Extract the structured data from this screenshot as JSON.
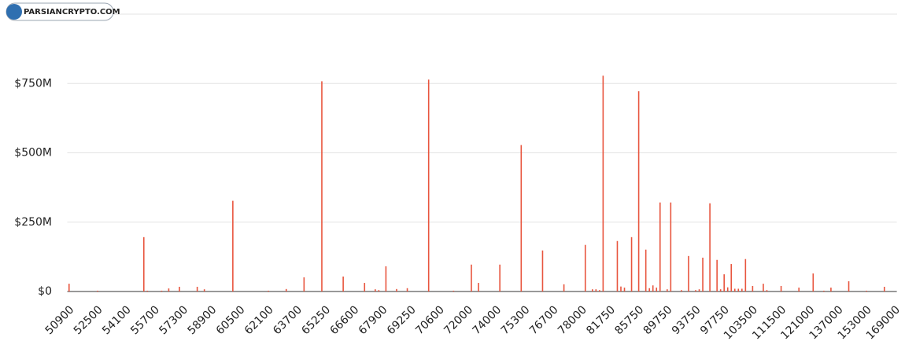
{
  "chart_data": {
    "type": "bar",
    "watermark": "PARSIANCRYPTO.COM",
    "color": "#e8553e",
    "categories": [
      "50900",
      null,
      null,
      null,
      null,
      null,
      null,
      null,
      "52500",
      null,
      null,
      null,
      null,
      null,
      null,
      null,
      "54100",
      null,
      null,
      null,
      null,
      null,
      null,
      null,
      "55700",
      null,
      null,
      null,
      null,
      null,
      null,
      null,
      "57300",
      null,
      null,
      null,
      null,
      null,
      null,
      null,
      "58900",
      null,
      null,
      null,
      null,
      null,
      null,
      null,
      "60500",
      null,
      null,
      null,
      null,
      null,
      null,
      null,
      "62100",
      null,
      null,
      null,
      null,
      null,
      null,
      null,
      "63700",
      null,
      null,
      null,
      null,
      null,
      null,
      null,
      "65250",
      null,
      null,
      null,
      null,
      null,
      null,
      null,
      "66600",
      null,
      null,
      null,
      null,
      null,
      null,
      null,
      "67900",
      null,
      null,
      null,
      null,
      null,
      null,
      null,
      "69250",
      null,
      null,
      null,
      null,
      null,
      null,
      null,
      "70600",
      null,
      null,
      null,
      null,
      null,
      null,
      null,
      "72000",
      null,
      null,
      null,
      null,
      null,
      null,
      null,
      "74000",
      null,
      null,
      null,
      null,
      null,
      null,
      null,
      "75300",
      null,
      null,
      null,
      null,
      null,
      null,
      null,
      "76700",
      null,
      null,
      null,
      null,
      null,
      null,
      null,
      "78000",
      null,
      null,
      null,
      null,
      null,
      null,
      null,
      "81750",
      null,
      null,
      null,
      null,
      null,
      null,
      null,
      "85750",
      null,
      null,
      null,
      null,
      null,
      null,
      null,
      "89750",
      null,
      null,
      null,
      null,
      null,
      null,
      null,
      "93750",
      null,
      null,
      null,
      null,
      null,
      null,
      null,
      "97750",
      null,
      null,
      null,
      null,
      null,
      null,
      null,
      "103500",
      null,
      null,
      null,
      null,
      null,
      null,
      null,
      "111500",
      null,
      null,
      null,
      null,
      null,
      null,
      null,
      "121000",
      null,
      null,
      null,
      null,
      null,
      null,
      null,
      "137000",
      null,
      null,
      null,
      null,
      null,
      null,
      null,
      "153000",
      null,
      null,
      null,
      null,
      null,
      null,
      null,
      "169000"
    ],
    "values": [
      28,
      0,
      0,
      0,
      0,
      0,
      0,
      0,
      3,
      0,
      0,
      0,
      0,
      0,
      0,
      0,
      0,
      0,
      0,
      0,
      0,
      196,
      3,
      0,
      0,
      0,
      3,
      0,
      11,
      0,
      0,
      17,
      0,
      0,
      0,
      0,
      17,
      0,
      8,
      0,
      0,
      0,
      0,
      0,
      0,
      0,
      327,
      0,
      0,
      0,
      0,
      0,
      0,
      0,
      0,
      0,
      3,
      0,
      0,
      0,
      0,
      9,
      0,
      0,
      0,
      0,
      51,
      0,
      0,
      0,
      0,
      758,
      0,
      0,
      0,
      0,
      0,
      54,
      0,
      0,
      0,
      0,
      0,
      31,
      0,
      0,
      8,
      5,
      0,
      91,
      0,
      0,
      9,
      0,
      0,
      12,
      0,
      0,
      0,
      0,
      0,
      764,
      0,
      0,
      0,
      0,
      0,
      0,
      3,
      0,
      0,
      0,
      0,
      97,
      0,
      31,
      0,
      0,
      0,
      0,
      0,
      97,
      0,
      0,
      0,
      0,
      0,
      528,
      0,
      0,
      0,
      0,
      0,
      148,
      0,
      0,
      0,
      0,
      0,
      26,
      0,
      0,
      0,
      0,
      0,
      168,
      0,
      8,
      8,
      5,
      778,
      0,
      0,
      0,
      182,
      18,
      14,
      0,
      196,
      0,
      722,
      0,
      151,
      12,
      22,
      14,
      321,
      0,
      8,
      321,
      0,
      0,
      5,
      0,
      128,
      0,
      5,
      8,
      122,
      0,
      318,
      0,
      114,
      8,
      62,
      15,
      99,
      10,
      10,
      10,
      117,
      0,
      20,
      0,
      0,
      28,
      5,
      0,
      0,
      0,
      20,
      0,
      0,
      0,
      0,
      14,
      0,
      0,
      0,
      65,
      0,
      0,
      3,
      0,
      14,
      0,
      0,
      0,
      0,
      37,
      0,
      0,
      0,
      0,
      3,
      0,
      0,
      0,
      0,
      17,
      0,
      0,
      0
    ],
    "ylim": [
      0,
      1000
    ],
    "yticks": [
      {
        "value": 0,
        "label": "$0"
      },
      {
        "value": 250,
        "label": "$250M"
      },
      {
        "value": 500,
        "label": "$500M"
      },
      {
        "value": 750,
        "label": "$750M"
      }
    ],
    "grid": true
  }
}
